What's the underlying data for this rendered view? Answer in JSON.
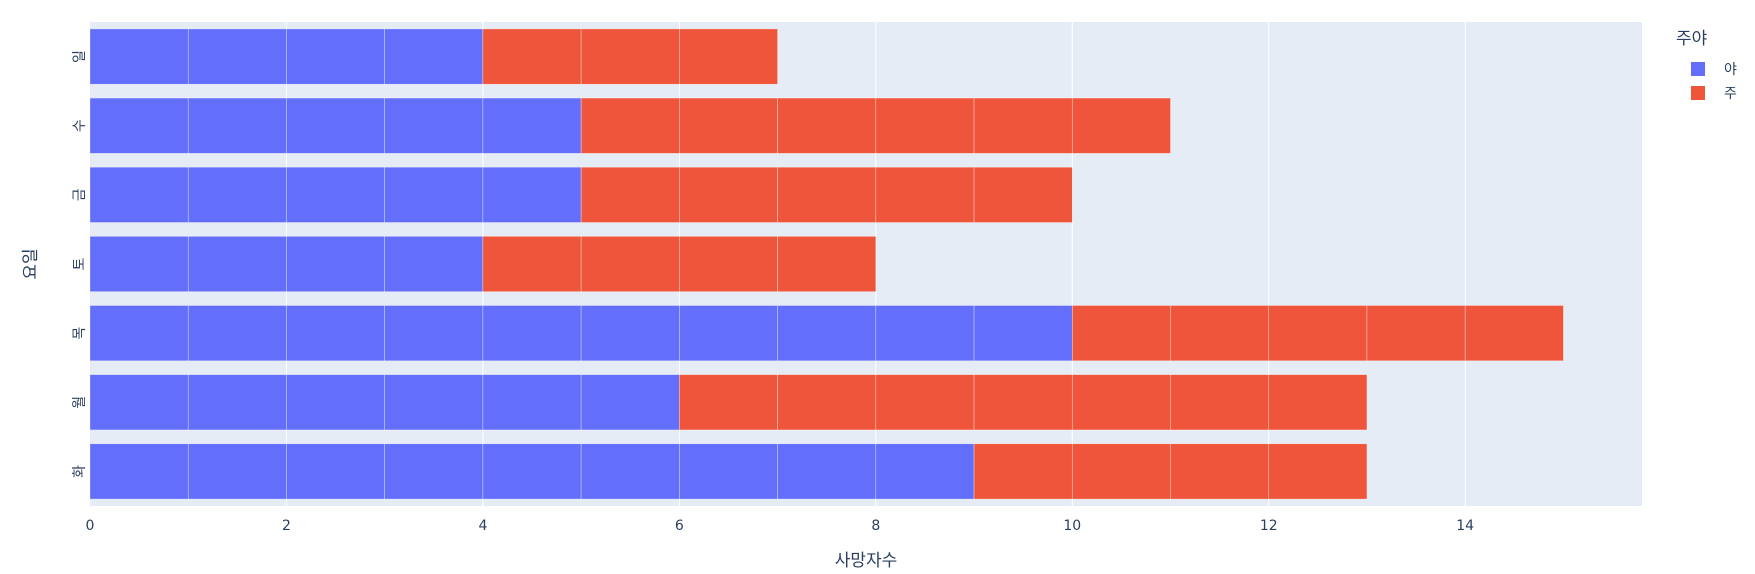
{
  "chart_data": {
    "type": "bar",
    "orientation": "horizontal",
    "barmode": "stack",
    "categories": [
      "일",
      "수",
      "금",
      "토",
      "목",
      "월",
      "화"
    ],
    "series": [
      {
        "name": "야",
        "values": [
          4,
          5,
          5,
          4,
          10,
          6,
          9
        ],
        "color": "#636efa"
      },
      {
        "name": "주",
        "values": [
          3,
          6,
          5,
          4,
          5,
          7,
          4
        ],
        "color": "#ef553b"
      }
    ],
    "unit_segments": true,
    "xlabel": "사망자수",
    "ylabel": "요일",
    "xlim": [
      0,
      15.8
    ],
    "xticks": [
      0,
      2,
      4,
      6,
      8,
      10,
      12,
      14
    ],
    "legend_title": "주야",
    "legend_position": "top-right",
    "grid": true,
    "plot_bgcolor": "#e5ecf6",
    "grid_color": "#ffffff"
  }
}
